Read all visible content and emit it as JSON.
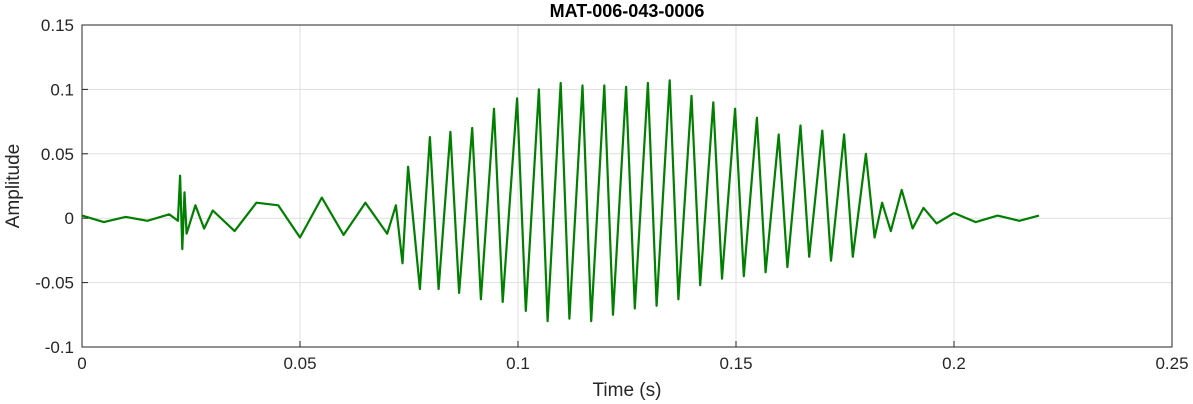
{
  "chart_data": {
    "type": "line",
    "title": "MAT-006-043-0006",
    "xlabel": "Time (s)",
    "ylabel": "Amplitude",
    "xlim": [
      0,
      0.25
    ],
    "ylim": [
      -0.1,
      0.15
    ],
    "grid": true,
    "legend": "none",
    "xticks": [
      0,
      0.05,
      0.1,
      0.15,
      0.2,
      0.25
    ],
    "xtick_labels": [
      "0",
      "0.05",
      "0.1",
      "0.15",
      "0.2",
      "0.25"
    ],
    "yticks": [
      -0.1,
      -0.05,
      0,
      0.05,
      0.1,
      0.15
    ],
    "ytick_labels": [
      "-0.1",
      "-0.05",
      "0",
      "0.05",
      "0.1",
      "0.15"
    ],
    "series": [
      {
        "color": "#007f00",
        "x": [
          0,
          0.005,
          0.01,
          0.015,
          0.02,
          0.022,
          0.0225,
          0.023,
          0.0235,
          0.024,
          0.026,
          0.028,
          0.03,
          0.035,
          0.04,
          0.045,
          0.05,
          0.055,
          0.06,
          0.065,
          0.07,
          0.072,
          0.0735,
          0.0748,
          0.0775,
          0.0798,
          0.0818,
          0.0845,
          0.0865,
          0.0895,
          0.0915,
          0.0945,
          0.0965,
          0.0998,
          0.1018,
          0.1048,
          0.1068,
          0.1098,
          0.1118,
          0.1148,
          0.1168,
          0.1198,
          0.1218,
          0.1248,
          0.1268,
          0.1298,
          0.1318,
          0.1348,
          0.1368,
          0.1398,
          0.1418,
          0.1448,
          0.1468,
          0.1498,
          0.1518,
          0.1548,
          0.1568,
          0.1598,
          0.1618,
          0.1648,
          0.1668,
          0.1698,
          0.1718,
          0.1748,
          0.1768,
          0.1798,
          0.1818,
          0.1835,
          0.1855,
          0.188,
          0.1905,
          0.193,
          0.196,
          0.2,
          0.205,
          0.21,
          0.215,
          0.2195
        ],
        "y": [
          0.002,
          -0.003,
          0.001,
          -0.002,
          0.003,
          -0.002,
          0.033,
          -0.024,
          0.02,
          -0.012,
          0.01,
          -0.008,
          0.006,
          -0.01,
          0.012,
          0.01,
          -0.015,
          0.016,
          -0.013,
          0.012,
          -0.012,
          0.01,
          -0.035,
          0.04,
          -0.055,
          0.063,
          -0.055,
          0.067,
          -0.058,
          0.07,
          -0.063,
          0.085,
          -0.065,
          0.093,
          -0.072,
          0.1,
          -0.08,
          0.105,
          -0.078,
          0.103,
          -0.08,
          0.103,
          -0.075,
          0.102,
          -0.07,
          0.105,
          -0.068,
          0.107,
          -0.063,
          0.095,
          -0.052,
          0.09,
          -0.047,
          0.085,
          -0.045,
          0.078,
          -0.042,
          0.065,
          -0.038,
          0.072,
          -0.03,
          0.068,
          -0.033,
          0.065,
          -0.03,
          0.05,
          -0.015,
          0.012,
          -0.01,
          0.022,
          -0.008,
          0.008,
          -0.004,
          0.004,
          -0.003,
          0.002,
          -0.002,
          0.002
        ]
      }
    ]
  }
}
